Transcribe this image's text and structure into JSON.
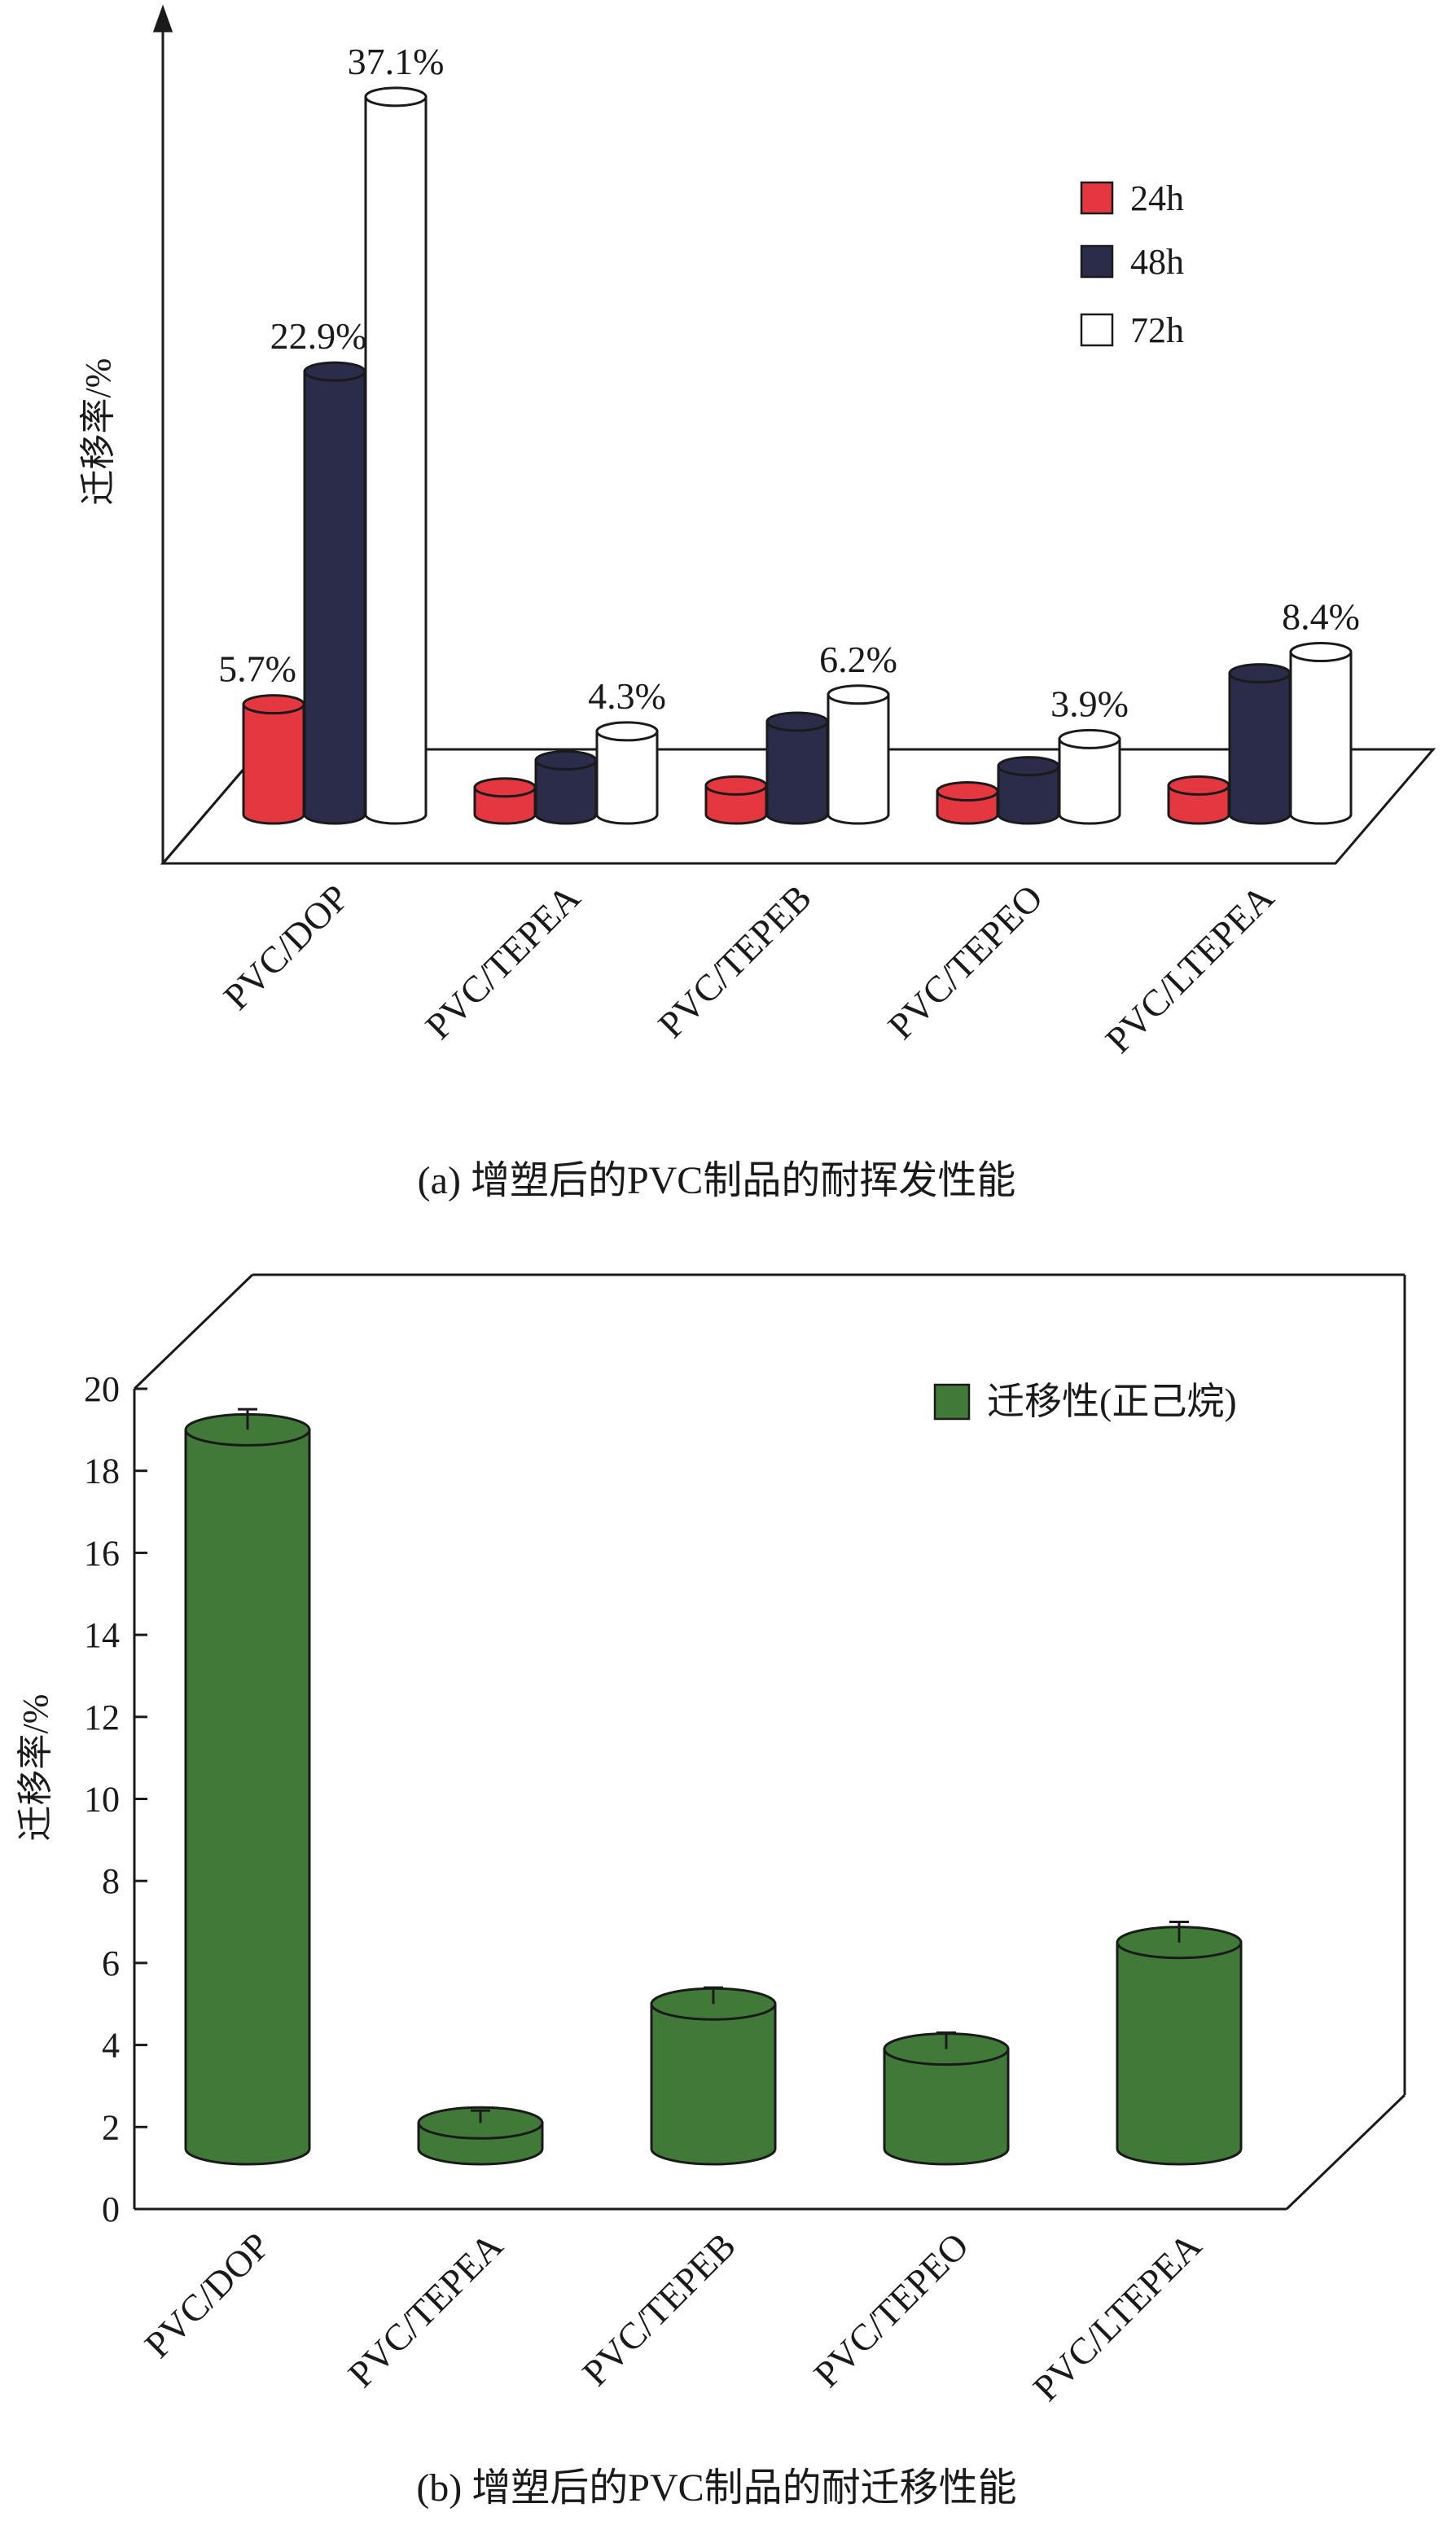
{
  "chart_data": [
    {
      "type": "bar",
      "title": "",
      "caption": "(a) 增塑后的PVC制品的耐挥发性能",
      "xlabel": "",
      "ylabel": "迁移率/%",
      "categories": [
        "PVC/DOP",
        "PVC/TEPEA",
        "PVC/TEPEB",
        "PVC/TEPEO",
        "PVC/LTEPEA"
      ],
      "series": [
        {
          "name": "24h",
          "color": "#e5373f",
          "values": [
            5.7,
            1.4,
            1.5,
            1.2,
            1.5
          ]
        },
        {
          "name": "48h",
          "color": "#2a2c4a",
          "values": [
            22.9,
            2.8,
            4.8,
            2.5,
            7.3
          ]
        },
        {
          "name": "72h",
          "color": "#ffffff",
          "values": [
            37.1,
            4.3,
            6.2,
            3.9,
            8.4
          ]
        }
      ],
      "data_labels": {
        "24h": [
          "5.7%",
          null,
          null,
          null,
          null
        ],
        "48h": [
          "22.9%",
          null,
          null,
          null,
          null
        ],
        "72h": [
          "37.1%",
          "4.3%",
          "6.2%",
          "3.9%",
          "8.4%"
        ]
      },
      "ylim": [
        0,
        40
      ],
      "yticks": [],
      "grid": false,
      "legend_position": "top-right"
    },
    {
      "type": "bar",
      "title": "",
      "caption": "(b) 增塑后的PVC制品的耐迁移性能",
      "xlabel": "",
      "ylabel": "迁移率/%",
      "categories": [
        "PVC/DOP",
        "PVC/TEPEA",
        "PVC/TEPEB",
        "PVC/TEPEO",
        "PVC/LTEPEA"
      ],
      "series": [
        {
          "name": "迁移性(正己烷)",
          "color": "#417a38",
          "values": [
            19.0,
            2.1,
            5.0,
            3.9,
            6.5
          ],
          "error": [
            0.5,
            0.3,
            0.4,
            0.4,
            0.5
          ]
        }
      ],
      "ylim": [
        0,
        20
      ],
      "yticks": [
        "0",
        "2",
        "4",
        "6",
        "8",
        "10",
        "12",
        "14",
        "16",
        "18",
        "20"
      ],
      "grid": false,
      "legend_position": "top-right"
    }
  ]
}
